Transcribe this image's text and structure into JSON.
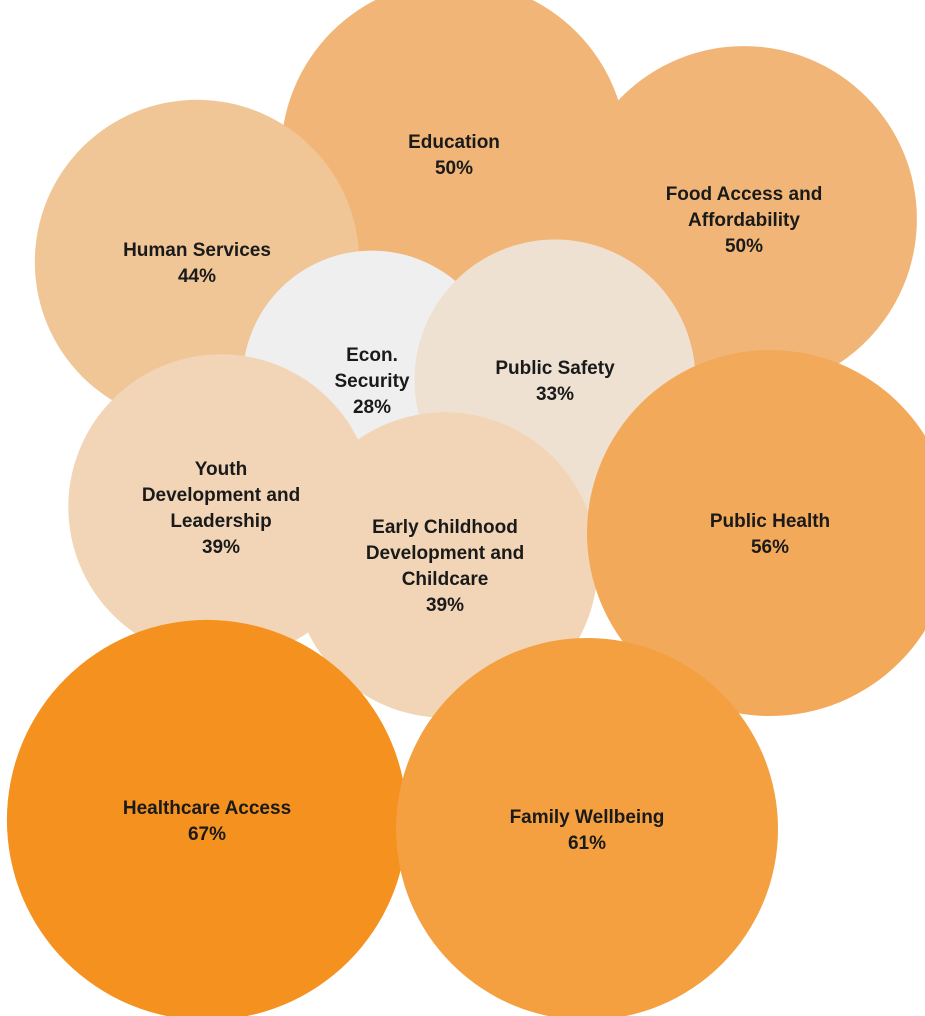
{
  "chart_data": {
    "type": "bubble",
    "title": "",
    "legend": "none",
    "grid": false,
    "series": [
      {
        "name": "",
        "points": [
          {
            "label": [
              "Education"
            ],
            "value_label": "50%",
            "value": 50,
            "color": "#f1b677"
          },
          {
            "label": [
              "Food Access and",
              "Affordability"
            ],
            "value_label": "50%",
            "value": 50,
            "color": "#f1b677"
          },
          {
            "label": [
              "Human Services"
            ],
            "value_label": "44%",
            "value": 44,
            "color": "#f0c697"
          },
          {
            "label": [
              "Econ.",
              "Security"
            ],
            "value_label": "28%",
            "value": 28,
            "color": "#efefef"
          },
          {
            "label": [
              "Public Safety"
            ],
            "value_label": "33%",
            "value": 33,
            "color": "#efe1d1"
          },
          {
            "label": [
              "Youth",
              "Development and",
              "Leadership"
            ],
            "value_label": "39%",
            "value": 39,
            "color": "#f1d5b6"
          },
          {
            "label": [
              "Early Childhood",
              "Development and",
              "Childcare"
            ],
            "value_label": "39%",
            "value": 39,
            "color": "#f1d5b6"
          },
          {
            "label": [
              "Public Health"
            ],
            "value_label": "56%",
            "value": 56,
            "color": "#f3a95a"
          },
          {
            "label": [
              "Healthcare Access"
            ],
            "value_label": "67%",
            "value": 67,
            "color": "#f5921f"
          },
          {
            "label": [
              "Family Wellbeing"
            ],
            "value_label": "61%",
            "value": 61,
            "color": "#f4a040"
          }
        ]
      }
    ]
  }
}
